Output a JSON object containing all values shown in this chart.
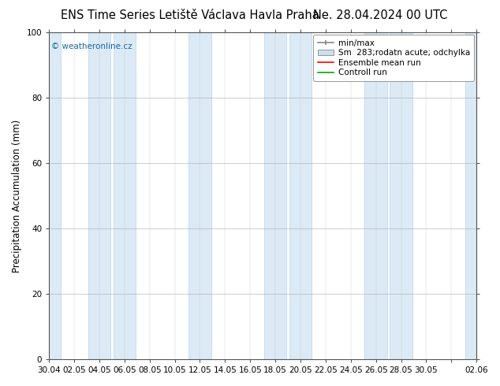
{
  "title_left": "ENS Time Series Letiště Václava Havla Praha",
  "title_right": "Ne. 28.04.2024 00 UTC",
  "ylabel": "Precipitation Accumulation (mm)",
  "ylim": [
    0,
    100
  ],
  "yticks": [
    0,
    20,
    40,
    60,
    80,
    100
  ],
  "xtick_labels": [
    "30.04",
    "02.05",
    "04.05",
    "06.05",
    "08.05",
    "10.05",
    "12.05",
    "14.05",
    "16.05",
    "18.05",
    "20.05",
    "22.05",
    "24.05",
    "26.05",
    "28.05",
    "30.05",
    "",
    "02.06"
  ],
  "watermark": "© weatheronline.cz",
  "watermark_color": "#1a6699",
  "legend_entries": [
    "min/max",
    "Sm  283;rodatn acute; odchylka",
    "Ensemble mean run",
    "Controll run"
  ],
  "legend_colors": [
    "#888888",
    "#cce0ee",
    "#ff0000",
    "#00aa00"
  ],
  "band_color": "#dbeaf5",
  "band_edge_color": "#b8d4e8",
  "background_color": "#ffffff",
  "plot_bg_color": "#ffffff",
  "title_fontsize": 10.5,
  "axis_label_fontsize": 8.5,
  "tick_fontsize": 7.5,
  "legend_fontsize": 7.5
}
